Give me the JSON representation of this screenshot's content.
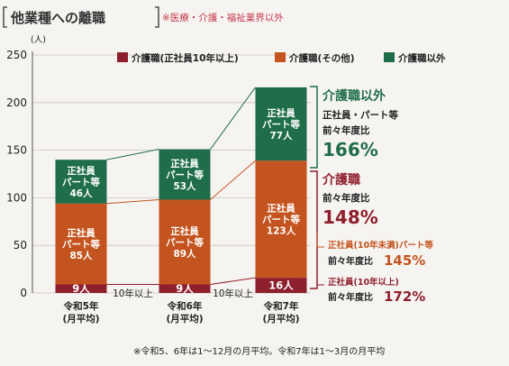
{
  "header": {
    "title": "他業種への離職",
    "note": "※医療・介護・福祉業界以外"
  },
  "colors": {
    "senior": "#8e1f2d",
    "other": "#c4541f",
    "non_care": "#1f6e49",
    "title": "#333333",
    "note": "#c5364a",
    "text": "#222222"
  },
  "chart_data": {
    "type": "bar",
    "stacked": true,
    "unit": "(人)",
    "ylim": [
      0,
      250
    ],
    "yticks": [
      0,
      50,
      100,
      150,
      200,
      250
    ],
    "categories": [
      {
        "line1": "令和5年",
        "line2": "(月平均)"
      },
      {
        "line1": "令和6年",
        "line2": "(月平均)"
      },
      {
        "line1": "令和7年",
        "line2": "(月平均)"
      }
    ],
    "legend": [
      {
        "key": "senior",
        "label": "介護職(正社員10年以上)"
      },
      {
        "key": "other",
        "label": "介護職(その他)"
      },
      {
        "key": "non_care",
        "label": "介護職以外"
      }
    ],
    "series": [
      {
        "key": "senior",
        "name": "介護職(正社員10年以上)",
        "values": [
          9,
          9,
          16
        ],
        "labels": [
          [
            "9人"
          ],
          [
            "9人"
          ],
          [
            "16人"
          ]
        ]
      },
      {
        "key": "other",
        "name": "介護職(その他)",
        "values": [
          85,
          89,
          123
        ],
        "labels": [
          [
            "正社員",
            "パート等",
            "85人"
          ],
          [
            "正社員",
            "パート等",
            "89人"
          ],
          [
            "正社員",
            "パート等",
            "123人"
          ]
        ]
      },
      {
        "key": "non_care",
        "name": "介護職以外",
        "values": [
          46,
          53,
          77
        ],
        "labels": [
          [
            "正社員",
            "パート等",
            "46人"
          ],
          [
            "正社員",
            "パート等",
            "53人"
          ],
          [
            "正社員",
            "パート等",
            "77人"
          ]
        ]
      }
    ],
    "connector_label": "10年以上",
    "annotations": {
      "non_care": {
        "title": "介護職以外",
        "sub": "正社員・パート等",
        "compare": "前々年度比",
        "value": "166%"
      },
      "care": {
        "title": "介護職",
        "compare": "前々年度比",
        "value": "148%"
      },
      "under10": {
        "sub": "正社員(10年未満)パート等",
        "compare": "前々年度比",
        "value": "145%"
      },
      "over10": {
        "sub": "正社員(10年以上)",
        "compare": "前々年度比",
        "value": "172%"
      }
    },
    "footnote": "※令和5、6年は1〜12月の月平均。令和7年は1〜3月の月平均"
  }
}
